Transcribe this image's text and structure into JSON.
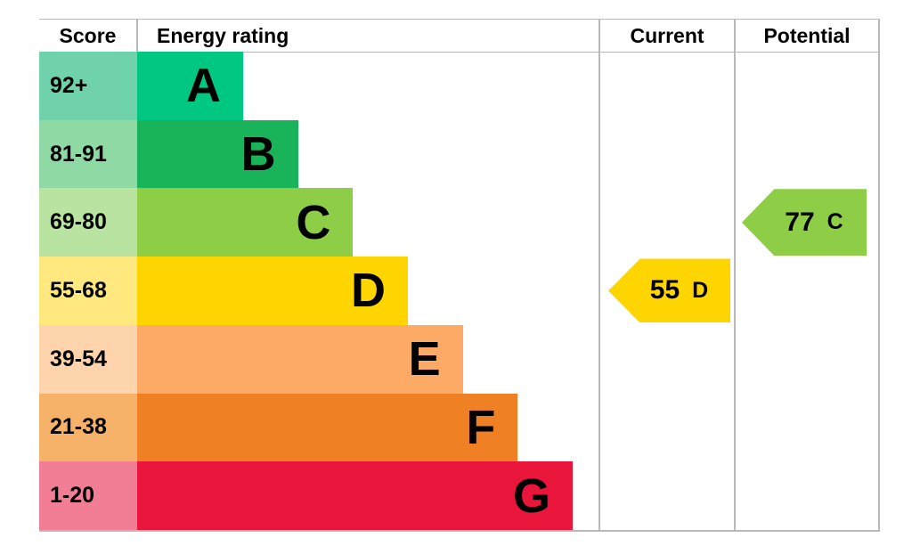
{
  "header": {
    "score": "Score",
    "energy_rating": "Energy rating",
    "current": "Current",
    "potential": "Potential"
  },
  "chart_data": {
    "type": "bar",
    "title": "Energy performance certificate (EPC) rating chart",
    "columns": [
      "Score",
      "Energy rating",
      "Current",
      "Potential"
    ],
    "bands": [
      {
        "letter": "A",
        "score_range": "92+",
        "bar_color": "#00c781",
        "score_cell_color": "#70d2ab"
      },
      {
        "letter": "B",
        "score_range": "81-91",
        "bar_color": "#19b459",
        "score_cell_color": "#8fd9a4"
      },
      {
        "letter": "C",
        "score_range": "69-80",
        "bar_color": "#8dce46",
        "score_cell_color": "#b8e3a1"
      },
      {
        "letter": "D",
        "score_range": "55-68",
        "bar_color": "#ffd500",
        "score_cell_color": "#ffe87d"
      },
      {
        "letter": "E",
        "score_range": "39-54",
        "bar_color": "#fcaa65",
        "score_cell_color": "#fdd4ac"
      },
      {
        "letter": "F",
        "score_range": "21-38",
        "bar_color": "#ef8023",
        "score_cell_color": "#f6b269"
      },
      {
        "letter": "G",
        "score_range": "1-20",
        "bar_color": "#e9153b",
        "score_cell_color": "#f27e96"
      }
    ],
    "current": {
      "value": "55",
      "letter": "D",
      "band_index": 3,
      "color": "#ffd500"
    },
    "potential": {
      "value": "77",
      "letter": "C",
      "band_index": 2,
      "color": "#8dce46"
    },
    "legend_position": "none",
    "grid": false
  }
}
